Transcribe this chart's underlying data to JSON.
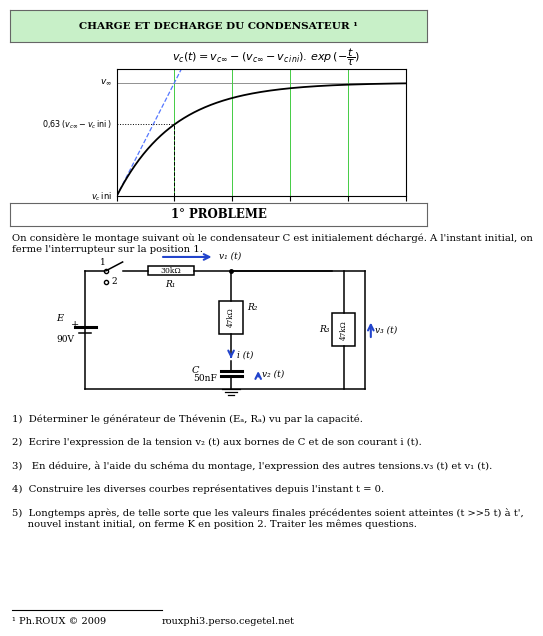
{
  "title": "CHARGE ET DECHARGE DU CONDENSATEUR ¹",
  "title_bg": "#c8f0c8",
  "problem_title": "1° PROBLEME",
  "grid_color": "#44cc44",
  "text_intro_1": "On considère le montage suivant où le condensateur C est initialement déchargé. A l'instant initial, on",
  "text_intro_2": "ferme l'interrupteur sur la position 1.",
  "q1": "1)  Déterminer le générateur de Thévenin (Eₐ, Rₐ) vu par la capacité.",
  "q2": "2)  Ecrire l'expression de la tension v₂ (t) aux bornes de C et de son courant i (t).",
  "q3": "3)   En déduire, à l'aide du schéma du montage, l'expression des autres tensions.v₃ (t) et v₁ (t).",
  "q4": "4)  Construire les diverses courbes représentatives depuis l'instant t = 0.",
  "q5a": "5)  Longtemps après, de telle sorte que les valeurs finales précédentes soient atteintes (t >>5 t) à t',",
  "q5b": "     nouvel instant initial, on ferme K en position 2. Traiter les mêmes questions.",
  "footer_left": "¹ Ph.ROUX © 2009",
  "footer_right": "rouxphi3.perso.cegetel.net",
  "E_value": "90V",
  "R1_val": "30kΩ",
  "R2_val": "47kΩ",
  "R3_val": "47kΩ",
  "C_val": "50nF"
}
